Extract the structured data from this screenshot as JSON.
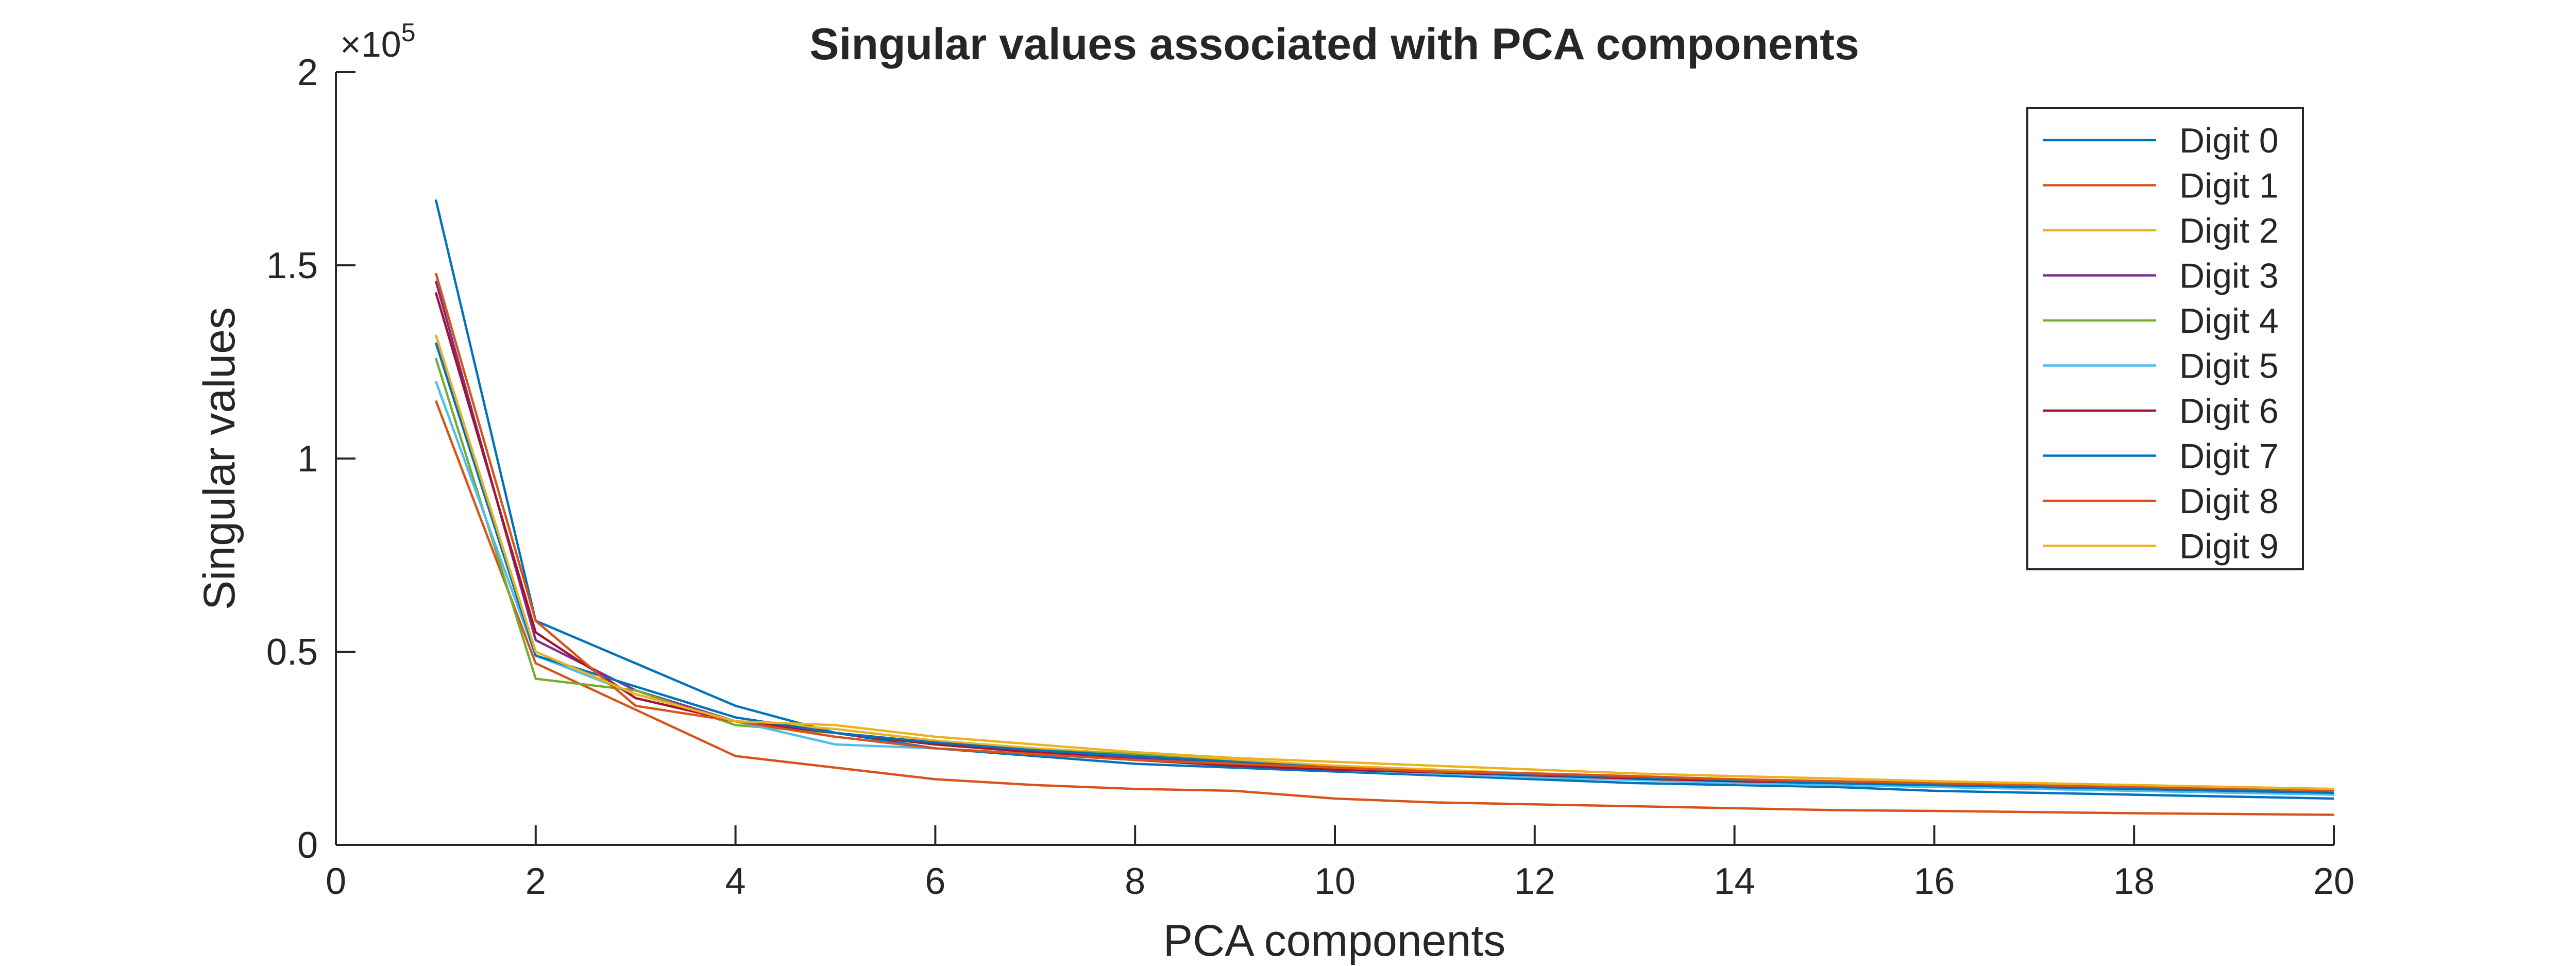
{
  "chart_data": {
    "type": "line",
    "title": "Singular values associated with PCA components",
    "xlabel": "PCA components",
    "ylabel": "Singular values",
    "y_exponent_label": {
      "base": "×10",
      "exponent": "5"
    },
    "xlim": [
      0,
      20
    ],
    "ylim": [
      0,
      2
    ],
    "y_scale_note": "values shown in units of 1e5",
    "x_ticks": [
      "0",
      "2",
      "4",
      "6",
      "8",
      "10",
      "12",
      "14",
      "16",
      "18",
      "20"
    ],
    "y_ticks": [
      "0",
      "0.5",
      "1",
      "1.5",
      "2"
    ],
    "legend_position": "top-right",
    "grid": false,
    "x": [
      1,
      2,
      3,
      4,
      5,
      6,
      7,
      8,
      9,
      10,
      11,
      12,
      13,
      14,
      15,
      16,
      17,
      18,
      19,
      20
    ],
    "series": [
      {
        "name": "Digit 0",
        "color": "#0072BD",
        "values": [
          1.67,
          0.58,
          0.47,
          0.36,
          0.29,
          0.25,
          0.23,
          0.21,
          0.2,
          0.19,
          0.18,
          0.17,
          0.16,
          0.155,
          0.15,
          0.14,
          0.135,
          0.13,
          0.125,
          0.12
        ]
      },
      {
        "name": "Digit 1",
        "color": "#D95319",
        "values": [
          1.15,
          0.47,
          0.35,
          0.23,
          0.2,
          0.17,
          0.155,
          0.145,
          0.14,
          0.12,
          0.11,
          0.105,
          0.1,
          0.095,
          0.09,
          0.088,
          0.085,
          0.082,
          0.08,
          0.078
        ]
      },
      {
        "name": "Digit 2",
        "color": "#EDB120",
        "values": [
          1.32,
          0.5,
          0.39,
          0.32,
          0.3,
          0.27,
          0.25,
          0.235,
          0.22,
          0.205,
          0.195,
          0.185,
          0.178,
          0.17,
          0.165,
          0.158,
          0.152,
          0.148,
          0.143,
          0.14
        ]
      },
      {
        "name": "Digit 3",
        "color": "#7E2F8E",
        "values": [
          1.46,
          0.53,
          0.4,
          0.32,
          0.29,
          0.26,
          0.24,
          0.225,
          0.21,
          0.2,
          0.19,
          0.18,
          0.172,
          0.165,
          0.16,
          0.155,
          0.15,
          0.145,
          0.14,
          0.135
        ]
      },
      {
        "name": "Digit 4",
        "color": "#77AC30",
        "values": [
          1.26,
          0.43,
          0.4,
          0.31,
          0.29,
          0.26,
          0.245,
          0.235,
          0.215,
          0.2,
          0.19,
          0.18,
          0.172,
          0.165,
          0.158,
          0.152,
          0.146,
          0.14,
          0.136,
          0.13
        ]
      },
      {
        "name": "Digit 5",
        "color": "#4DBEEE",
        "values": [
          1.2,
          0.49,
          0.39,
          0.32,
          0.26,
          0.25,
          0.235,
          0.22,
          0.205,
          0.195,
          0.185,
          0.175,
          0.168,
          0.16,
          0.155,
          0.15,
          0.145,
          0.14,
          0.135,
          0.13
        ]
      },
      {
        "name": "Digit 6",
        "color": "#A2142F",
        "values": [
          1.43,
          0.55,
          0.38,
          0.32,
          0.29,
          0.26,
          0.24,
          0.22,
          0.205,
          0.195,
          0.188,
          0.18,
          0.172,
          0.165,
          0.16,
          0.155,
          0.15,
          0.145,
          0.14,
          0.135
        ]
      },
      {
        "name": "Digit 7",
        "color": "#0072BD",
        "values": [
          1.3,
          0.49,
          0.41,
          0.33,
          0.29,
          0.265,
          0.245,
          0.23,
          0.215,
          0.2,
          0.19,
          0.182,
          0.175,
          0.168,
          0.16,
          0.155,
          0.15,
          0.145,
          0.14,
          0.135
        ]
      },
      {
        "name": "Digit 8",
        "color": "#D95319",
        "values": [
          1.48,
          0.58,
          0.36,
          0.32,
          0.28,
          0.25,
          0.235,
          0.22,
          0.21,
          0.2,
          0.19,
          0.185,
          0.178,
          0.17,
          0.165,
          0.16,
          0.155,
          0.15,
          0.146,
          0.142
        ]
      },
      {
        "name": "Digit 9",
        "color": "#EDB120",
        "values": [
          1.32,
          0.5,
          0.39,
          0.32,
          0.31,
          0.28,
          0.26,
          0.24,
          0.225,
          0.215,
          0.205,
          0.195,
          0.185,
          0.178,
          0.172,
          0.165,
          0.16,
          0.155,
          0.15,
          0.145
        ]
      }
    ]
  }
}
